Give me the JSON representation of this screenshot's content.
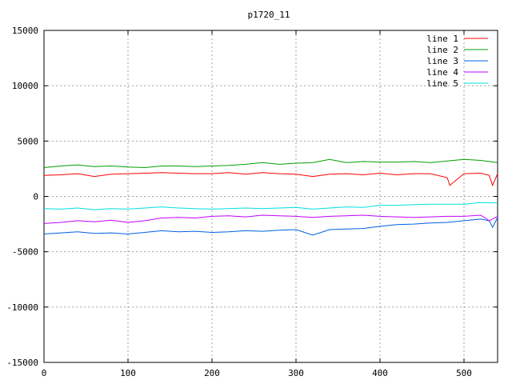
{
  "chart_data": {
    "type": "line",
    "title": "p1720_11",
    "xlabel": "",
    "ylabel": "",
    "xlim": [
      0,
      540
    ],
    "ylim": [
      -15000,
      15000
    ],
    "x_ticks": [
      0,
      100,
      200,
      300,
      400,
      500
    ],
    "y_ticks": [
      -15000,
      -10000,
      -5000,
      0,
      5000,
      10000,
      15000
    ],
    "grid": true,
    "legend_position": "top-right",
    "series": [
      {
        "name": "line 1",
        "color": "#ff0000",
        "x": [
          0,
          20,
          40,
          60,
          80,
          100,
          120,
          140,
          160,
          180,
          200,
          220,
          240,
          260,
          280,
          300,
          320,
          340,
          360,
          380,
          400,
          420,
          440,
          460,
          480,
          483,
          500,
          520,
          530,
          534,
          540
        ],
        "y": [
          1900,
          1950,
          2050,
          1800,
          2000,
          2050,
          2100,
          2150,
          2100,
          2050,
          2050,
          2150,
          2000,
          2150,
          2050,
          2000,
          1800,
          2000,
          2050,
          1950,
          2100,
          1950,
          2050,
          2050,
          1700,
          1000,
          2050,
          2100,
          1900,
          1000,
          2050
        ]
      },
      {
        "name": "line 2",
        "color": "#00a000",
        "x": [
          0,
          20,
          40,
          60,
          80,
          100,
          120,
          140,
          160,
          180,
          200,
          220,
          240,
          260,
          280,
          300,
          320,
          340,
          360,
          380,
          400,
          420,
          440,
          460,
          480,
          500,
          520,
          540
        ],
        "y": [
          2600,
          2750,
          2850,
          2700,
          2750,
          2650,
          2600,
          2750,
          2750,
          2700,
          2750,
          2800,
          2900,
          3050,
          2900,
          3000,
          3050,
          3350,
          3050,
          3150,
          3100,
          3100,
          3150,
          3050,
          3200,
          3350,
          3250,
          3050
        ]
      },
      {
        "name": "line 3",
        "color": "#0060e0",
        "x": [
          0,
          20,
          40,
          60,
          80,
          100,
          120,
          140,
          160,
          180,
          200,
          220,
          240,
          260,
          280,
          300,
          320,
          340,
          360,
          380,
          400,
          420,
          440,
          460,
          480,
          500,
          520,
          530,
          534,
          540
        ],
        "y": [
          -3400,
          -3300,
          -3200,
          -3350,
          -3300,
          -3400,
          -3250,
          -3100,
          -3200,
          -3150,
          -3250,
          -3200,
          -3100,
          -3150,
          -3050,
          -3000,
          -3500,
          -3000,
          -2950,
          -2900,
          -2700,
          -2550,
          -2500,
          -2400,
          -2350,
          -2200,
          -2050,
          -2200,
          -2800,
          -1900
        ]
      },
      {
        "name": "line 4",
        "color": "#c000ff",
        "x": [
          0,
          20,
          40,
          60,
          80,
          100,
          120,
          140,
          160,
          180,
          200,
          220,
          240,
          260,
          280,
          300,
          320,
          340,
          360,
          380,
          400,
          420,
          440,
          460,
          480,
          500,
          520,
          530,
          540
        ],
        "y": [
          -2450,
          -2350,
          -2200,
          -2300,
          -2150,
          -2350,
          -2200,
          -1950,
          -1900,
          -1950,
          -1800,
          -1750,
          -1850,
          -1700,
          -1750,
          -1800,
          -1900,
          -1800,
          -1750,
          -1700,
          -1800,
          -1850,
          -1900,
          -1850,
          -1800,
          -1800,
          -1700,
          -2200,
          -1800
        ]
      },
      {
        "name": "line 5",
        "color": "#00e0e0",
        "x": [
          0,
          20,
          40,
          60,
          80,
          100,
          120,
          140,
          160,
          180,
          200,
          220,
          240,
          260,
          280,
          300,
          320,
          340,
          360,
          380,
          400,
          420,
          440,
          460,
          480,
          500,
          520,
          540
        ],
        "y": [
          -1100,
          -1150,
          -1050,
          -1200,
          -1100,
          -1150,
          -1050,
          -950,
          -1050,
          -1100,
          -1150,
          -1100,
          -1050,
          -1100,
          -1050,
          -1000,
          -1150,
          -1050,
          -950,
          -1000,
          -800,
          -800,
          -750,
          -700,
          -700,
          -700,
          -550,
          -600
        ]
      }
    ]
  }
}
